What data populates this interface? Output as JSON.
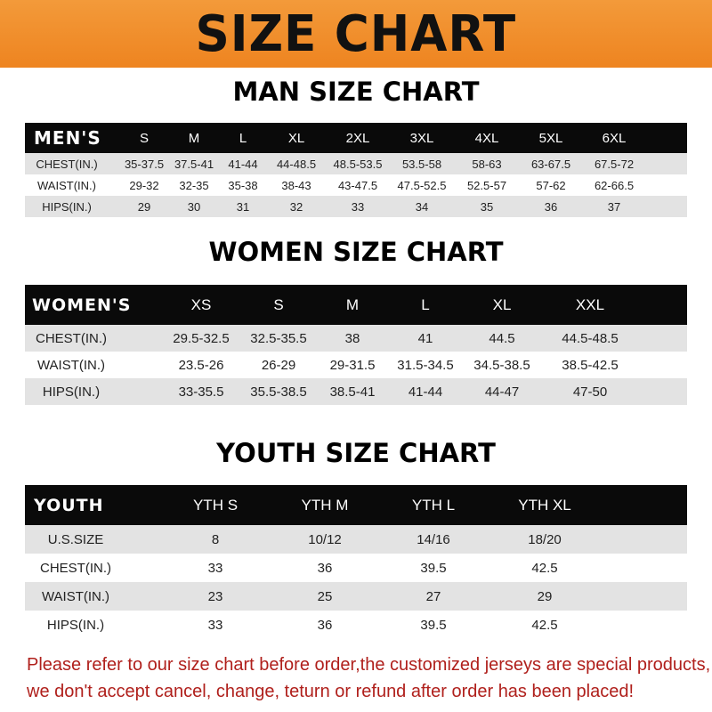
{
  "banner_title": "SIZE CHART",
  "men": {
    "title": "MAN SIZE CHART",
    "header": [
      "MEN'S",
      "S",
      "M",
      "L",
      "XL",
      "2XL",
      "3XL",
      "4XL",
      "5XL",
      "6XL"
    ],
    "rows": [
      [
        "CHEST(IN.)",
        "35-37.5",
        "37.5-41",
        "41-44",
        "44-48.5",
        "48.5-53.5",
        "53.5-58",
        "58-63",
        "63-67.5",
        "67.5-72"
      ],
      [
        "WAIST(IN.)",
        "29-32",
        "32-35",
        "35-38",
        "38-43",
        "43-47.5",
        "47.5-52.5",
        "52.5-57",
        "57-62",
        "62-66.5"
      ],
      [
        "HIPS(IN.)",
        "29",
        "30",
        "31",
        "32",
        "33",
        "34",
        "35",
        "36",
        "37"
      ]
    ]
  },
  "women": {
    "title": "WOMEN SIZE CHART",
    "header": [
      "WOMEN'S",
      "XS",
      "S",
      "M",
      "L",
      "XL",
      "XXL"
    ],
    "rows": [
      [
        "CHEST(IN.)",
        "29.5-32.5",
        "32.5-35.5",
        "38",
        "41",
        "44.5",
        "44.5-48.5"
      ],
      [
        "WAIST(IN.)",
        "23.5-26",
        "26-29",
        "29-31.5",
        "31.5-34.5",
        "34.5-38.5",
        "38.5-42.5"
      ],
      [
        "HIPS(IN.)",
        "33-35.5",
        "35.5-38.5",
        "38.5-41",
        "41-44",
        "44-47",
        "47-50"
      ]
    ]
  },
  "youth": {
    "title": "YOUTH SIZE CHART",
    "header": [
      "YOUTH",
      "YTH S",
      "YTH M",
      "YTH L",
      "YTH XL"
    ],
    "rows": [
      [
        "U.S.SIZE",
        "8",
        "10/12",
        "14/16",
        "18/20"
      ],
      [
        "CHEST(IN.)",
        "33",
        "36",
        "39.5",
        "42.5"
      ],
      [
        "WAIST(IN.)",
        "23",
        "25",
        "27",
        "29"
      ],
      [
        "HIPS(IN.)",
        "33",
        "36",
        "39.5",
        "42.5"
      ]
    ]
  },
  "footer": {
    "line1": "Please refer to our size chart before order,the customized jerseys are special products,",
    "line2": "we don't accept cancel, change, teturn or refund after order has been placed!"
  },
  "colors": {
    "banner": "#ee8420",
    "header_row": "#0a0a0a",
    "alt_row": "#e3e3e3",
    "notice_text": "#b0201c"
  }
}
